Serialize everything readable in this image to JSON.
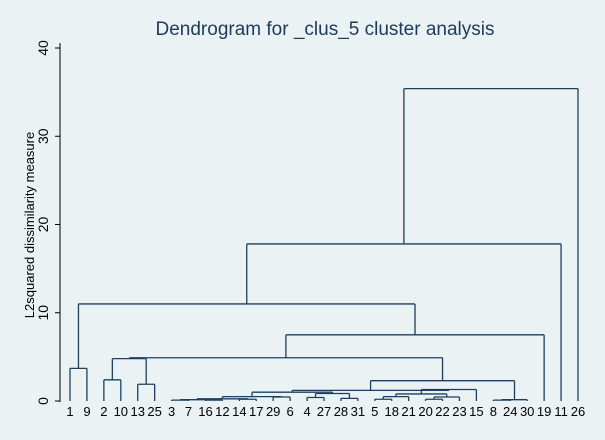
{
  "chart_data": {
    "type": "dendrogram",
    "title": "Dendrogram for _clus_5 cluster analysis",
    "ylabel": "L2squared dissimilarity measure",
    "xlabel": "",
    "ylim": [
      0,
      40
    ],
    "yticks": [
      "0",
      "10",
      "20",
      "30",
      "40"
    ],
    "grid": false,
    "leaves": [
      "1",
      "9",
      "2",
      "10",
      "13",
      "25",
      "3",
      "7",
      "16",
      "12",
      "14",
      "17",
      "29",
      "6",
      "4",
      "27",
      "28",
      "31",
      "5",
      "18",
      "21",
      "20",
      "22",
      "23",
      "15",
      "8",
      "24",
      "30",
      "19",
      "11",
      "26"
    ],
    "merges": [
      {
        "a": "1",
        "b": "9",
        "height": 3.7
      },
      {
        "a": "2",
        "b": "10",
        "height": 2.4
      },
      {
        "a": "13",
        "b": "25",
        "height": 1.9
      },
      {
        "a": [
          "2",
          "10"
        ],
        "b": [
          "13",
          "25"
        ],
        "height": 4.8
      },
      {
        "a": "3",
        "b": "7",
        "height": 0.1
      },
      {
        "a": "16",
        "b": "12",
        "height": 0.1
      },
      {
        "a": [
          "3",
          "7"
        ],
        "b": [
          "16",
          "12"
        ],
        "height": 0.15
      },
      {
        "a": "14",
        "b": "17",
        "height": 0.2
      },
      {
        "a": [
          "3",
          "7",
          "16",
          "12"
        ],
        "b": [
          "14",
          "17"
        ],
        "height": 0.25
      },
      {
        "a": "29",
        "b": "6",
        "height": 0.45
      },
      {
        "a": [
          "3",
          "7",
          "16",
          "12",
          "14",
          "17"
        ],
        "b": [
          "29",
          "6"
        ],
        "height": 0.5
      },
      {
        "a": "4",
        "b": "27",
        "height": 0.4
      },
      {
        "a": "28",
        "b": "31",
        "height": 0.3
      },
      {
        "a": [
          "4",
          "27"
        ],
        "b": [
          "28",
          "31"
        ],
        "height": 0.85
      },
      {
        "a": [
          "3",
          "7",
          "16",
          "12",
          "14",
          "17",
          "29",
          "6"
        ],
        "b": [
          "4",
          "27",
          "28",
          "31"
        ],
        "height": 1.0
      },
      {
        "a": "5",
        "b": "18",
        "height": 0.2
      },
      {
        "a": [
          "5",
          "18"
        ],
        "b": "21",
        "height": 0.5
      },
      {
        "a": "20",
        "b": "22",
        "height": 0.2
      },
      {
        "a": [
          "20",
          "22"
        ],
        "b": "23",
        "height": 0.45
      },
      {
        "a": [
          "5",
          "18",
          "21"
        ],
        "b": [
          "20",
          "22",
          "23"
        ],
        "height": 0.8
      },
      {
        "a": [
          "5",
          "18",
          "21",
          "20",
          "22",
          "23"
        ],
        "b": "15",
        "height": 1.3
      },
      {
        "a": [
          "3",
          "7",
          "16",
          "12",
          "14",
          "17",
          "29",
          "6",
          "4",
          "27",
          "28",
          "31"
        ],
        "b": [
          "5",
          "18",
          "21",
          "20",
          "22",
          "23",
          "15"
        ],
        "height": 1.2
      },
      {
        "a": "8",
        "b": "24",
        "height": 0.1
      },
      {
        "a": [
          "8",
          "24"
        ],
        "b": "30",
        "height": 0.15
      },
      {
        "a": [
          "3",
          "7",
          "16",
          "12",
          "14",
          "17",
          "29",
          "6",
          "4",
          "27",
          "28",
          "31",
          "5",
          "18",
          "21",
          "20",
          "22",
          "23",
          "15"
        ],
        "b": [
          "8",
          "24",
          "30"
        ],
        "height": 2.3
      },
      {
        "a": [
          "2",
          "10",
          "13",
          "25"
        ],
        "b": [
          "3",
          "7",
          "16",
          "12",
          "14",
          "17",
          "29",
          "6",
          "4",
          "27",
          "28",
          "31",
          "5",
          "18",
          "21",
          "20",
          "22",
          "23",
          "15",
          "8",
          "24",
          "30"
        ],
        "height": 4.9
      },
      {
        "a": [
          "2",
          "10",
          "13",
          "25",
          "3",
          "7",
          "16",
          "12",
          "14",
          "17",
          "29",
          "6",
          "4",
          "27",
          "28",
          "31",
          "5",
          "18",
          "21",
          "20",
          "22",
          "23",
          "15",
          "8",
          "24",
          "30"
        ],
        "b": "19",
        "height": 7.5
      },
      {
        "a": "1",
        "b": "9",
        "group": true,
        "height": 3.7
      },
      {
        "a": [
          "1",
          "9"
        ],
        "b": [
          "2",
          "10",
          "13",
          "25",
          "3",
          "7",
          "16",
          "12",
          "14",
          "17",
          "29",
          "6",
          "4",
          "27",
          "28",
          "31",
          "5",
          "18",
          "21",
          "20",
          "22",
          "23",
          "15",
          "8",
          "24",
          "30",
          "19"
        ],
        "height": 11.0
      },
      {
        "a": [
          "1",
          "9",
          "2",
          "10",
          "13",
          "25",
          "3",
          "7",
          "16",
          "12",
          "14",
          "17",
          "29",
          "6",
          "4",
          "27",
          "28",
          "31",
          "5",
          "18",
          "21",
          "20",
          "22",
          "23",
          "15",
          "8",
          "24",
          "30",
          "19"
        ],
        "b": "11",
        "height": 17.8
      },
      {
        "a": [
          "1",
          "9",
          "2",
          "10",
          "13",
          "25",
          "3",
          "7",
          "16",
          "12",
          "14",
          "17",
          "29",
          "6",
          "4",
          "27",
          "28",
          "31",
          "5",
          "18",
          "21",
          "20",
          "22",
          "23",
          "15",
          "8",
          "24",
          "30",
          "19",
          "11"
        ],
        "b": "26",
        "height": 35.4
      }
    ]
  }
}
